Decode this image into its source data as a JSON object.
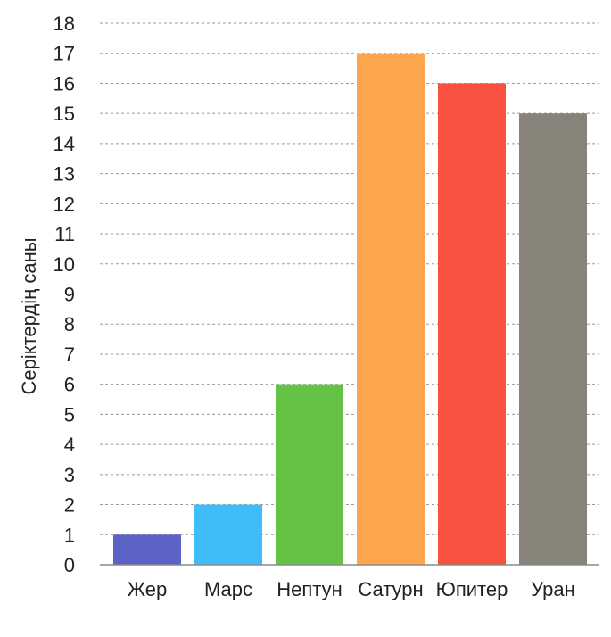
{
  "chart_data": {
    "type": "bar",
    "ylabel": "Серіктердің саны",
    "xlabel": "",
    "categories": [
      "Жер",
      "Марс",
      "Нептун",
      "Сатурн",
      "Юпитер",
      "Уран"
    ],
    "values": [
      1,
      2,
      6,
      17,
      16,
      15
    ],
    "colors": [
      "#5d63c4",
      "#40bdf8",
      "#66c244",
      "#fba54c",
      "#f95140",
      "#878379"
    ],
    "ylim": [
      0,
      18
    ],
    "yticks": [
      0,
      1,
      2,
      3,
      4,
      5,
      6,
      7,
      8,
      9,
      10,
      11,
      12,
      13,
      14,
      15,
      16,
      17,
      18
    ],
    "grid": true,
    "legend": "none"
  }
}
